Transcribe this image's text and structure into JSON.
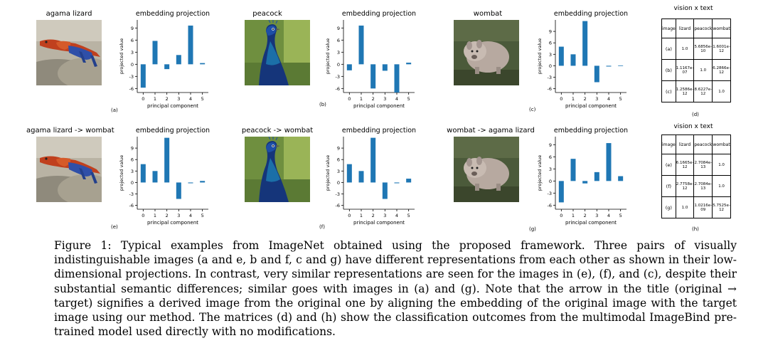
{
  "rows": [
    {
      "panels": [
        {
          "title": "agama lizard",
          "photo": "agama-lizard",
          "label": "(a)",
          "chart": {
            "title": "embedding projection",
            "xlabel": "principal component",
            "ylabel": "projected value",
            "yticks": [
              "9",
              "6",
              "3",
              "0",
              "-3",
              "-6"
            ],
            "xticks": [
              "0",
              "1",
              "2",
              "3",
              "4",
              "5"
            ]
          }
        },
        {
          "title": "peacock",
          "photo": "peacock",
          "label": "(b)",
          "chart": {
            "title": "embedding projection",
            "xlabel": "principal component",
            "ylabel": "projected value",
            "yticks": [
              "9",
              "6",
              "3",
              "0",
              "-3",
              "-6"
            ],
            "xticks": [
              "0",
              "1",
              "2",
              "3",
              "4",
              "5"
            ]
          }
        },
        {
          "title": "wombat",
          "photo": "wombat",
          "label": "(c)",
          "chart": {
            "title": "embedding projection",
            "xlabel": "principal component",
            "ylabel": "projected value",
            "yticks": [
              "9",
              "6",
              "3",
              "0",
              "-3",
              "-6"
            ],
            "xticks": [
              "0",
              "1",
              "2",
              "3",
              "4",
              "5"
            ]
          }
        }
      ],
      "matrix": {
        "title": "vision x text",
        "label": "(d)",
        "header": [
          "image",
          "lizard",
          "peacock",
          "wombat"
        ],
        "rows": [
          [
            "(a)",
            "1.0",
            "5.6856e-10",
            "1.6001e-12"
          ],
          [
            "(b)",
            "1.1167e-07",
            "1.0",
            "6.2866e-12"
          ],
          [
            "(c)",
            "1.2586e-12",
            "8.6227e-12",
            "1.0"
          ]
        ]
      }
    },
    {
      "panels": [
        {
          "title": "agama lizard -> wombat",
          "photo": "agama-lizard",
          "label": "(e)",
          "chart": {
            "title": "embedding projection",
            "xlabel": "principal component",
            "ylabel": "projected value",
            "yticks": [
              "9",
              "6",
              "3",
              "0",
              "-3",
              "-6"
            ],
            "xticks": [
              "0",
              "1",
              "2",
              "3",
              "4",
              "5"
            ]
          }
        },
        {
          "title": "peacock -> wombat",
          "photo": "peacock",
          "label": "(f)",
          "chart": {
            "title": "embedding projection",
            "xlabel": "principal component",
            "ylabel": "projected value",
            "yticks": [
              "9",
              "6",
              "3",
              "0",
              "-3",
              "-6"
            ],
            "xticks": [
              "0",
              "1",
              "2",
              "3",
              "4",
              "5"
            ]
          }
        },
        {
          "title": "wombat -> agama lizard",
          "photo": "wombat",
          "label": "(g)",
          "chart": {
            "title": "embedding projection",
            "xlabel": "principal component",
            "ylabel": "projected value",
            "yticks": [
              "9",
              "6",
              "3",
              "0",
              "-3",
              "-6"
            ],
            "xticks": [
              "0",
              "1",
              "2",
              "3",
              "4",
              "5"
            ]
          }
        }
      ],
      "matrix": {
        "title": "vision x text",
        "label": "(h)",
        "header": [
          "image",
          "lizard",
          "peacock",
          "wombat"
        ],
        "rows": [
          [
            "(e)",
            "6.1665e-12",
            "2.7084e-13",
            "1.0"
          ],
          [
            "(f)",
            "2.7758e-12",
            "2.7084e-13",
            "1.0"
          ],
          [
            "(g)",
            "1.0",
            "1.0216e-09",
            "5.7525e-12"
          ]
        ]
      }
    }
  ],
  "caption": "Figure 1: Typical examples from ImageNet obtained using the proposed framework. Three pairs of visually indistinguishable images (a and e, b and f, c and g) have different representations from each other as shown in their low-dimensional projections. In contrast, very similar representations are seen for the images in (e), (f), and (c), despite their substantial semantic differences; similar goes with images in (a) and (g). Note that the arrow in the title (original → target) signifies a derived image from the original one by aligning the embedding of the original image with the target image using our method. The matrices (d) and (h) show the classification outcomes from the multimodal ImageBind pre-trained model used directly with no modifications.",
  "colors": {
    "bar": "#1f77b4"
  },
  "chart_data": [
    {
      "type": "bar",
      "panel": "(a)",
      "title": "embedding projection",
      "xlabel": "principal component",
      "ylabel": "projected value",
      "categories": [
        0,
        1,
        2,
        3,
        4,
        5
      ],
      "values": [
        -5.8,
        5.8,
        -1.2,
        2.3,
        9.6,
        0.3
      ],
      "ylim": [
        -7,
        11
      ]
    },
    {
      "type": "bar",
      "panel": "(b)",
      "title": "embedding projection",
      "xlabel": "principal component",
      "ylabel": "projected value",
      "categories": [
        0,
        1,
        2,
        3,
        4,
        5
      ],
      "values": [
        -1.5,
        9.6,
        -6.0,
        -1.6,
        -7.0,
        0.4
      ],
      "ylim": [
        -7,
        11
      ]
    },
    {
      "type": "bar",
      "panel": "(c)",
      "title": "embedding projection",
      "xlabel": "principal component",
      "ylabel": "projected value",
      "categories": [
        0,
        1,
        2,
        3,
        4,
        5
      ],
      "values": [
        5.0,
        3.0,
        11.7,
        -4.3,
        -0.2,
        0.1
      ],
      "ylim": [
        -7,
        12
      ]
    },
    {
      "type": "bar",
      "panel": "(e)",
      "title": "embedding projection",
      "xlabel": "principal component",
      "ylabel": "projected value",
      "categories": [
        0,
        1,
        2,
        3,
        4,
        5
      ],
      "values": [
        4.8,
        3.0,
        11.7,
        -4.3,
        -0.2,
        0.4
      ],
      "ylim": [
        -7,
        12
      ]
    },
    {
      "type": "bar",
      "panel": "(f)",
      "title": "embedding projection",
      "xlabel": "principal component",
      "ylabel": "projected value",
      "categories": [
        0,
        1,
        2,
        3,
        4,
        5
      ],
      "values": [
        4.8,
        3.0,
        11.7,
        -4.3,
        -0.2,
        1.0
      ],
      "ylim": [
        -7,
        12
      ]
    },
    {
      "type": "bar",
      "panel": "(g)",
      "title": "embedding projection",
      "xlabel": "principal component",
      "ylabel": "projected value",
      "categories": [
        0,
        1,
        2,
        3,
        4,
        5
      ],
      "values": [
        -5.3,
        5.5,
        -0.6,
        2.2,
        9.4,
        1.2
      ],
      "ylim": [
        -7,
        11
      ]
    }
  ]
}
